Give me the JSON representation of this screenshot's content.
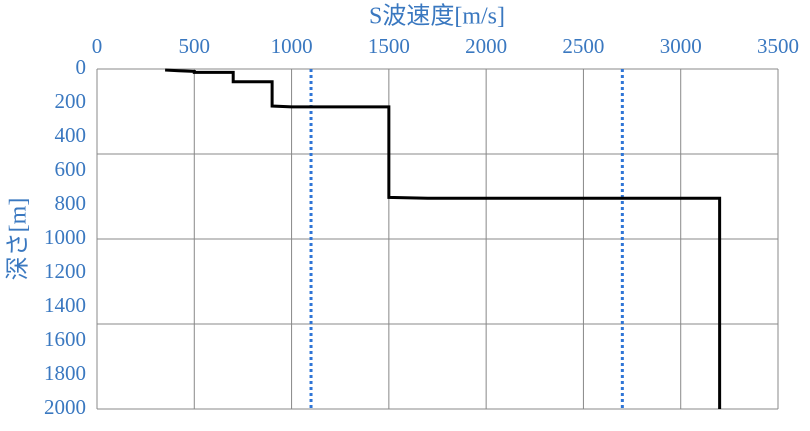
{
  "chart_data": {
    "type": "line",
    "title": "S波速度[m/s]",
    "ylabel": "深さ[m]",
    "x_axis_position": "top",
    "y_inverted": true,
    "xlim": [
      0,
      3500
    ],
    "xticks": [
      0,
      500,
      1000,
      1500,
      2000,
      2500,
      3000,
      3500
    ],
    "ylim": [
      0,
      2000
    ],
    "yticks": [
      0,
      200,
      400,
      600,
      800,
      1000,
      1200,
      1400,
      1600,
      1800,
      2000
    ],
    "ygrid": [
      500,
      1000,
      1500,
      2000
    ],
    "grid": true,
    "series": [
      {
        "color": "#000000",
        "x": [
          350,
          420,
          500,
          500,
          700,
          700,
          900,
          900,
          1000,
          1500,
          1500,
          1700,
          3200,
          3200
        ],
        "values": [
          6,
          10,
          14,
          20,
          20,
          75,
          75,
          218,
          223,
          223,
          755,
          760,
          760,
          2000
        ]
      }
    ],
    "reference_lines": {
      "color": "#2f75d6",
      "x": [
        1100,
        2700
      ]
    }
  }
}
